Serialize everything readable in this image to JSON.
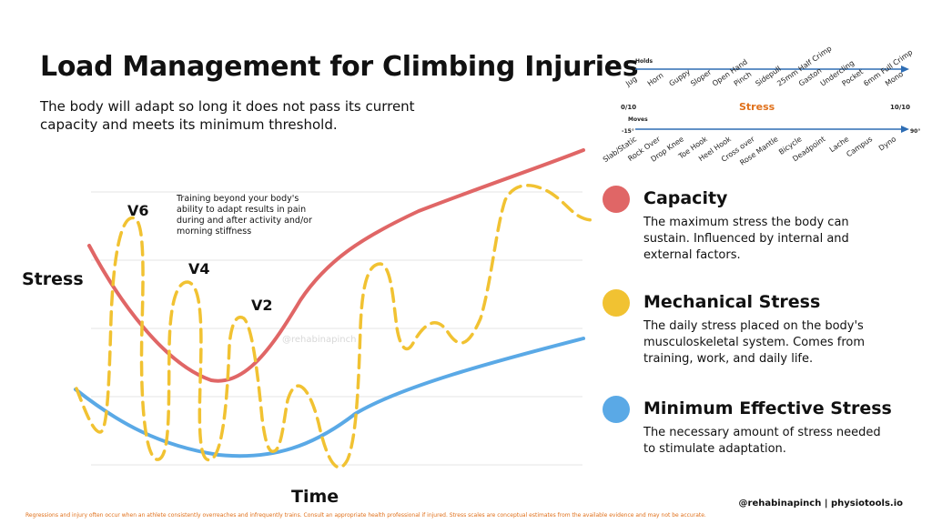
{
  "header": {
    "title": "Load Management for Climbing Injuries",
    "subtitle": "The body will adapt so long it does not pass its current capacity and meets its minimum threshold."
  },
  "scale": {
    "holds_label": "Holds",
    "holds": [
      "Jug",
      "Horn",
      "Guppy",
      "Sloper",
      "Open Hand",
      "Pinch",
      "Sidepull",
      "25mm Half Crimp",
      "Gaston",
      "Undercling",
      "Pocket",
      "6mm Full Crimp",
      "Mono"
    ],
    "stress_left": "0/10",
    "stress_label": "Stress",
    "stress_right": "10/10",
    "moves_label": "Moves",
    "moves_start": "-15°",
    "moves_end": "90°",
    "moves": [
      "Slab/Static",
      "Rock Over",
      "Drop Knee",
      "Toe Hook",
      "Heel Hook",
      "Cross over",
      "Rose Mantle",
      "Bicycle",
      "Deadpoint",
      "Lache",
      "Campus",
      "Dyno"
    ]
  },
  "chart": {
    "ylabel": "Stress",
    "xlabel": "Time",
    "annotation": "Training beyond your body's ability to adapt results in pain during and after activity and/or morning stiffness",
    "grade_labels": [
      "V6",
      "V4",
      "V2"
    ],
    "watermark": "@rehabinapinch"
  },
  "chart_data": {
    "type": "line",
    "xlabel": "Time",
    "ylabel": "Stress",
    "series": [
      {
        "name": "Capacity",
        "color": "#e06666"
      },
      {
        "name": "Mechanical Stress",
        "color": "#f1c232"
      },
      {
        "name": "Minimum Effective Stress",
        "color": "#5aa9e6"
      }
    ]
  },
  "legend": [
    {
      "title": "Capacity",
      "color": "#e06666",
      "desc": "The maximum stress the body can sustain. Influenced by internal and external factors."
    },
    {
      "title": "Mechanical Stress",
      "color": "#f1c232",
      "desc": "The daily stress placed on the body's musculoskeletal system. Comes from training, work, and daily life."
    },
    {
      "title": "Minimum Effective Stress",
      "color": "#5aa9e6",
      "desc": "The necessary amount of stress needed to stimulate adaptation."
    }
  ],
  "footer": {
    "note": "Regressions and injury often occur when an athlete consistently overreaches and infrequently trains. Consult an appropriate health professional if injured. Stress scales are conceptual estimates from the available evidence and may not be accurate.",
    "credit": "@rehabinapinch | physiotools.io"
  }
}
